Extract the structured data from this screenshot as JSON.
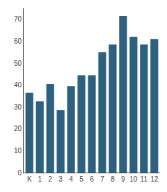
{
  "chart_data": {
    "type": "bar",
    "categories": [
      "K",
      "1",
      "2",
      "3",
      "4",
      "5",
      "6",
      "7",
      "8",
      "9",
      "10",
      "11",
      "12"
    ],
    "values": [
      36.5,
      32.5,
      40.5,
      28.5,
      39.5,
      44.5,
      44.5,
      55,
      58.5,
      71.5,
      62,
      58.5,
      61
    ],
    "color": "#2E6080",
    "ylim": [
      0,
      75
    ],
    "yticks": [
      0,
      10,
      20,
      30,
      40,
      50,
      60,
      70
    ],
    "grid": false
  }
}
